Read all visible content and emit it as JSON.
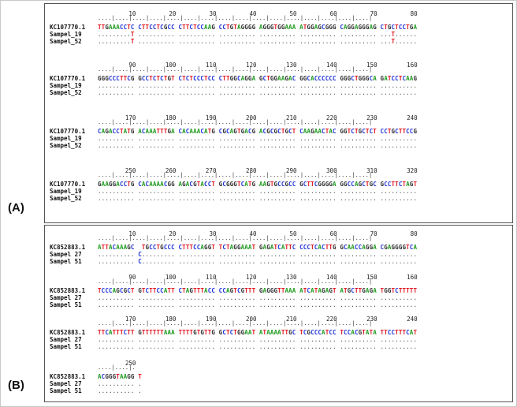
{
  "panel_a": {
    "label": "(A)",
    "blocks": [
      {
        "ruler": [
          "10",
          "20",
          "30",
          "40",
          "50",
          "60",
          "70",
          "80"
        ],
        "ticks": "....|....|....|....|....|....|....|....|....|....|....|....|....|....|....|....|",
        "rows": [
          {
            "name": "KC107770.1",
            "seq": "TTGAAACCTC CTTCCTCGCC CTTCTCCAAG CCTGTAGGGG AGGGTGGAAA ATGGAGCGGG CAGGAGGGAG CTGCTCCTGA"
          },
          {
            "name": "Sampel_19",
            "seq": ".........T .......... .......... .......... .......... .......... .......... ...T......"
          },
          {
            "name": "Sampel_52",
            "seq": ".........T .......... .......... .......... .......... .......... .......... ...T......"
          }
        ]
      },
      {
        "ruler": [
          "90",
          "100",
          "110",
          "120",
          "130",
          "140",
          "150",
          "160"
        ],
        "ticks": "....|....|....|....|....|....|....|....|....|....|....|....|....|....|....|....|",
        "rows": [
          {
            "name": "KC107770.1",
            "seq": "GGGCCCTTCG GCCTCTCTGT CTCTCCCTCC CTTGGCAGGA GCTGGAAGAC GGCACCCCCC GGGCTGGGCA GATCCTCAAG"
          },
          {
            "name": "Sampel_19",
            "seq": ".......... .......... .......... .......... .......... .......... .......... .........."
          },
          {
            "name": "Sampel_52",
            "seq": ".......... .......... .......... .......... .......... .......... .......... .........."
          }
        ]
      },
      {
        "ruler": [
          "170",
          "180",
          "190",
          "200",
          "210",
          "220",
          "230",
          "240"
        ],
        "ticks": "....|....|....|....|....|....|....|....|....|....|....|....|....|....|....|....|",
        "rows": [
          {
            "name": "KC107770.1",
            "seq": "CAGACCTATG ACAAATTTGA CACAAACATG CGCAGTGACG ACGCGCTGCT CAAGAACTAC GGTCTGCTCT CCTGCTTCCG"
          },
          {
            "name": "Sampel_19",
            "seq": ".......... .......... .......... .......... .......... .......... .......... .........."
          },
          {
            "name": "Sampel_52",
            "seq": ".......... .......... .......... .......... .......... .......... .......... .........."
          }
        ]
      },
      {
        "ruler": [
          "250",
          "260",
          "270",
          "280",
          "290",
          "300",
          "310",
          "320"
        ],
        "ticks": "....|....|....|....|....|....|....|....|....|....|....|....|....|....|....|....|",
        "rows": [
          {
            "name": "KC107770.1",
            "seq": "GAAGGACCTG CACAAAACGG AGACGTACCT GCGGGTCATG AAGTGCCGCC GCTTCGGGGA GGCCAGCTGC GCCTTCTAGT"
          },
          {
            "name": "Sampel_19",
            "seq": ".......... .......... .......... .......... .......... .......... .......... .........."
          },
          {
            "name": "Sampel_52",
            "seq": ".......... .......... .......... .......... .......... .......... .......... .........."
          }
        ]
      }
    ]
  },
  "panel_b": {
    "label": "(B)",
    "blocks": [
      {
        "ruler": [
          "10",
          "20",
          "30",
          "40",
          "50",
          "60",
          "70",
          "80"
        ],
        "ticks": "....|....|....|....|....|....|....|....|....|....|....|....|....|....|....|....|",
        "rows": [
          {
            "name": "KC852883.1",
            "seq": "ATTACAAAGC  TGCCTGCCC CTTTCCAGGT TCTAGGAAAT GAGATCATTC CCCTCACTTG GCAACCAGGA CGAGGGGTCA"
          },
          {
            "name": "Sampel 27",
            "seq": ".......... C......... .......... .......... .......... .......... .......... .........."
          },
          {
            "name": "Sampel 51",
            "seq": ".......... C......... .......... .......... .......... .......... .......... .........."
          }
        ]
      },
      {
        "ruler": [
          "90",
          "100",
          "110",
          "120",
          "130",
          "140",
          "150",
          "160"
        ],
        "ticks": "....|....|....|....|....|....|....|....|....|....|....|....|....|....|....|....|",
        "rows": [
          {
            "name": "KC852883.1",
            "seq": "TCCCAGCGCT GTCTTCCATT CTAGTTTACC CCAGTCGTTT GAGGGTTAAA ATCATAGAGT ATGCTTGAGA TGGTCTTTTT"
          },
          {
            "name": "Sampel 27",
            "seq": ".......... .......... .......... .......... .......... .......... .......... .........."
          },
          {
            "name": "Sampel 51",
            "seq": ".......... .......... .......... .......... .......... .......... .......... .........."
          }
        ]
      },
      {
        "ruler": [
          "170",
          "180",
          "190",
          "200",
          "210",
          "220",
          "230",
          "240"
        ],
        "ticks": "....|....|....|....|....|....|....|....|....|....|....|....|....|....|....|....|",
        "rows": [
          {
            "name": "KC852883.1",
            "seq": "TTCATTTCTT GTTTTTTAAA TTTTGTGTTG GCTCTGGAAT ATAAAATTGC TCGCCCATCC TCCACGTATA TTCCTTTCAT"
          },
          {
            "name": "Sampel 27",
            "seq": ".......... .......... .......... .......... .......... .......... .......... .........."
          },
          {
            "name": "Sampel 51",
            "seq": ".......... .......... .......... .......... .......... .......... .......... .........."
          }
        ]
      },
      {
        "ruler": [
          "250"
        ],
        "ticks": "....|....|.",
        "rows": [
          {
            "name": "KC852883.1",
            "seq": "ACGGGTAAGG T"
          },
          {
            "name": "Sampel 27",
            "seq": ".......... ."
          },
          {
            "name": "Sampel 51",
            "seq": ".......... ."
          }
        ]
      }
    ]
  }
}
